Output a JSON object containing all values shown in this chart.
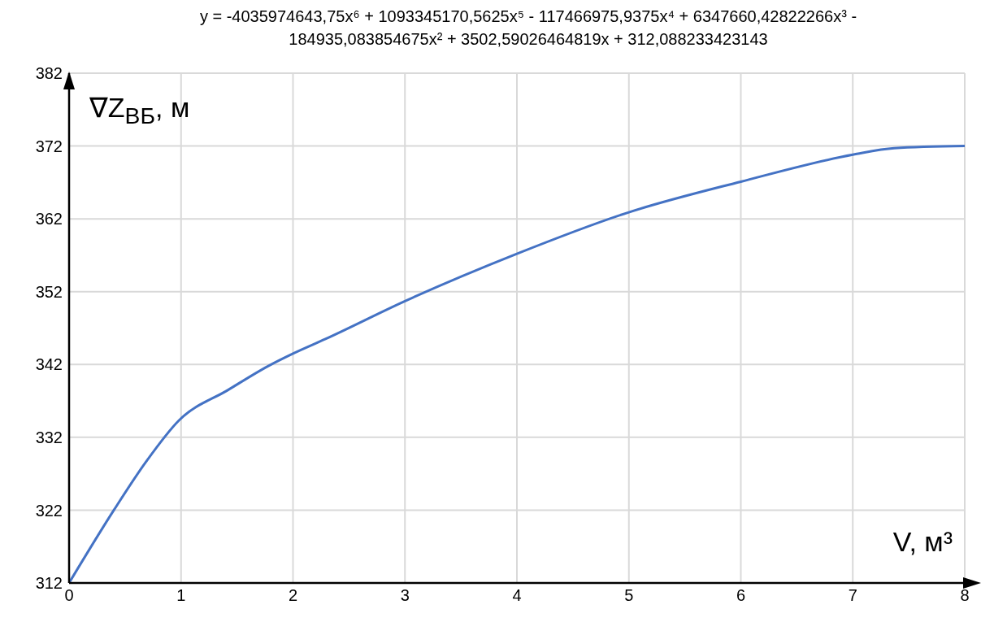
{
  "chart_data": {
    "type": "line",
    "title": "y = -4035974643,75x⁶ + 1093345170,5625x⁵ - 117466975,9375x⁴ + 6347660,42822266x³ - 184935,083854675x² + 3502,59026464819x + 312,088233423143",
    "xlabel": "V, м³",
    "ylabel": "∇Z$_{ВБ}$, м",
    "x": [
      0,
      0.4,
      0.69,
      0.98,
      1.42,
      1.78,
      2,
      2.29,
      3,
      4,
      5,
      6,
      7,
      7.37,
      8
    ],
    "series": [
      {
        "color": "#4472c4",
        "values": [
          312,
          322,
          328.7,
          334.3,
          338.5,
          341.8,
          343.5,
          345.5,
          350.7,
          357.2,
          362.9,
          367.1,
          370.8,
          371.7,
          372
        ]
      }
    ],
    "xlim": [
      0,
      8
    ],
    "xticks": [
      0,
      1,
      2,
      3,
      4,
      5,
      6,
      7,
      8
    ],
    "ylim": [
      312,
      382
    ],
    "yticks": [
      312,
      322,
      332,
      342,
      352,
      362,
      372,
      382
    ],
    "grid": true,
    "marker": "none",
    "line_style": "solid"
  }
}
